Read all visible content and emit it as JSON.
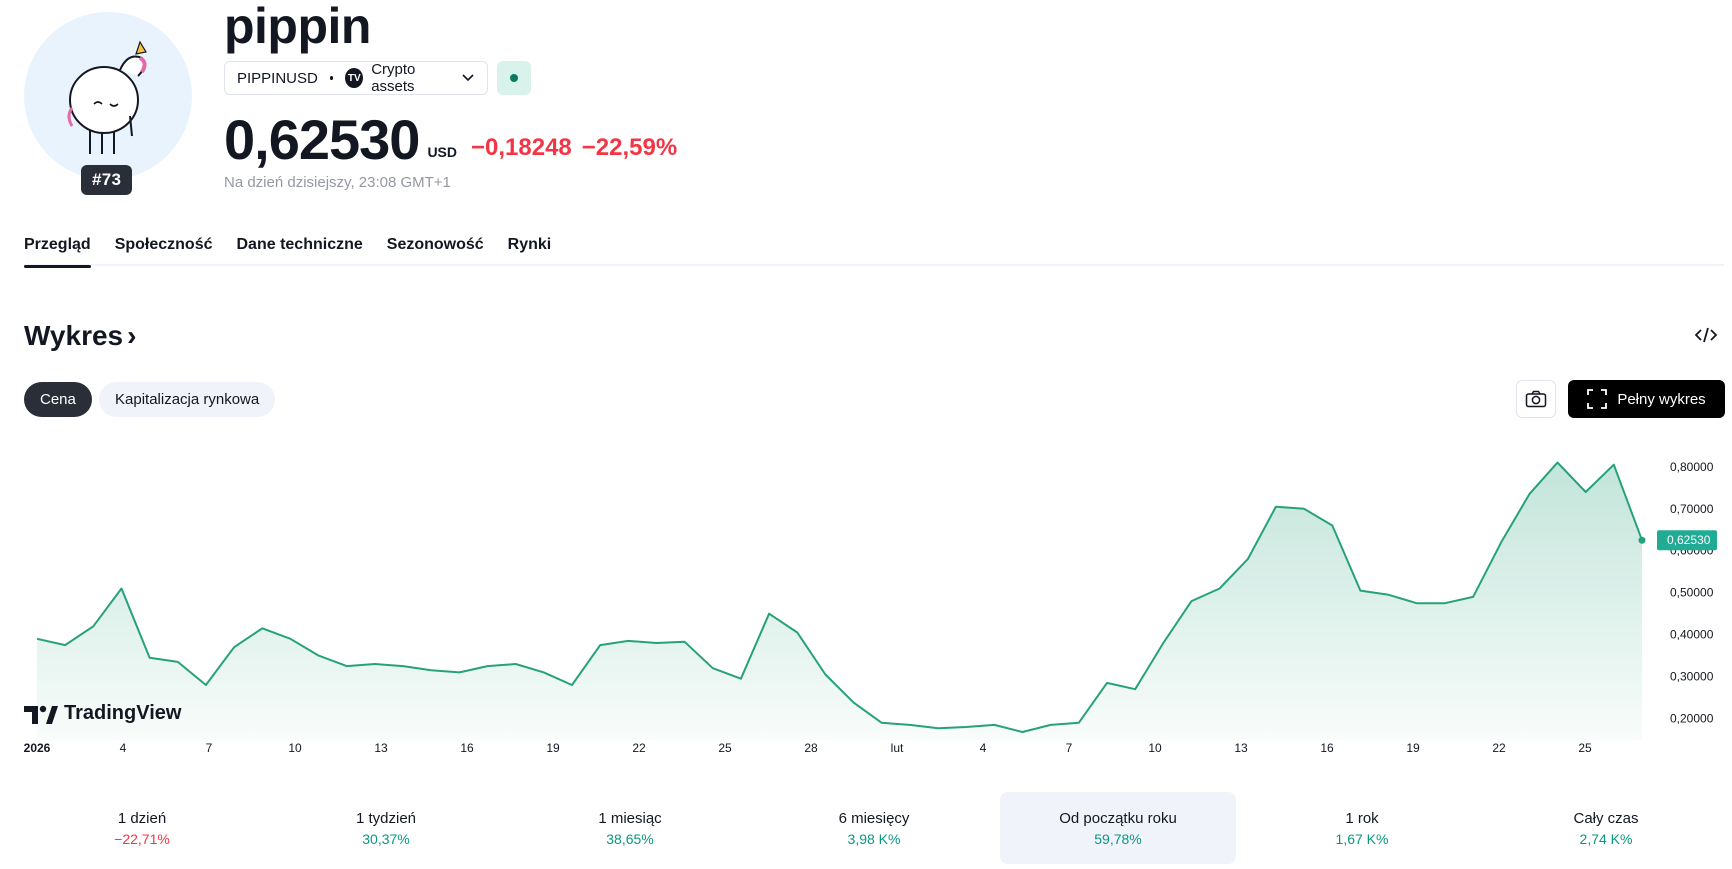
{
  "coin": {
    "name": "pippin",
    "rank": "#73",
    "symbol": "PIPPINUSD",
    "exchange": "Crypto assets",
    "price": "0,62530",
    "currency": "USD",
    "change_abs": "−0,18248",
    "change_pct": "−22,59%",
    "price_time": "Na dzień dzisiejszy, 23:08 GMT+1"
  },
  "tabs": [
    {
      "label": "Przegląd",
      "active": true
    },
    {
      "label": "Społeczność",
      "active": false
    },
    {
      "label": "Dane techniczne",
      "active": false
    },
    {
      "label": "Sezonowość",
      "active": false
    },
    {
      "label": "Rynki",
      "active": false
    }
  ],
  "section": {
    "title": "Wykres",
    "chevron": "›"
  },
  "chart_toggles": {
    "price_label": "Cena",
    "market_cap_label": "Kapitalizacja rynkowa"
  },
  "actions": {
    "full_chart_label": "Pełny wykres"
  },
  "branding": {
    "tradingview_label": "TradingView"
  },
  "colors": {
    "line": "#26a17b",
    "negative": "#f23645",
    "positive": "#089981",
    "price_tag": "#22ab94"
  },
  "chart_data": {
    "type": "area",
    "x_ticks": [
      "2026",
      "4",
      "7",
      "10",
      "13",
      "16",
      "19",
      "22",
      "25",
      "28",
      "lut",
      "4",
      "7",
      "10",
      "13",
      "16",
      "19",
      "22",
      "25"
    ],
    "y_ticks": [
      "0,80000",
      "0,70000",
      "0,60000",
      "0,50000",
      "0,40000",
      "0,30000",
      "0,20000"
    ],
    "ylim": [
      0.168,
      0.84
    ],
    "current_price_label": "0,62530",
    "series": [
      {
        "values": [
          0.39,
          0.375,
          0.42,
          0.51,
          0.345,
          0.335,
          0.28,
          0.37,
          0.415,
          0.39,
          0.35,
          0.325,
          0.33,
          0.325,
          0.315,
          0.31,
          0.325,
          0.33,
          0.31,
          0.28,
          0.375,
          0.385,
          0.38,
          0.383,
          0.32,
          0.295,
          0.45,
          0.405,
          0.305,
          0.238,
          0.19,
          0.185,
          0.177,
          0.18,
          0.185,
          0.168,
          0.185,
          0.19,
          0.285,
          0.27,
          0.38,
          0.48,
          0.51,
          0.58,
          0.705,
          0.7,
          0.66,
          0.505,
          0.495,
          0.475,
          0.475,
          0.49,
          0.62,
          0.735,
          0.81,
          0.74,
          0.805,
          0.625
        ]
      }
    ]
  },
  "periods": [
    {
      "label": "1 dzień",
      "value": "−22,71%",
      "sign": "neg",
      "active": false
    },
    {
      "label": "1 tydzień",
      "value": "30,37%",
      "sign": "pos",
      "active": false
    },
    {
      "label": "1 miesiąc",
      "value": "38,65%",
      "sign": "pos",
      "active": false
    },
    {
      "label": "6 miesięcy",
      "value": "3,98 K%",
      "sign": "pos",
      "active": false
    },
    {
      "label": "Od początku roku",
      "value": "59,78%",
      "sign": "pos",
      "active": true
    },
    {
      "label": "1 rok",
      "value": "1,67 K%",
      "sign": "pos",
      "active": false
    },
    {
      "label": "Cały czas",
      "value": "2,74 K%",
      "sign": "pos",
      "active": false
    }
  ]
}
